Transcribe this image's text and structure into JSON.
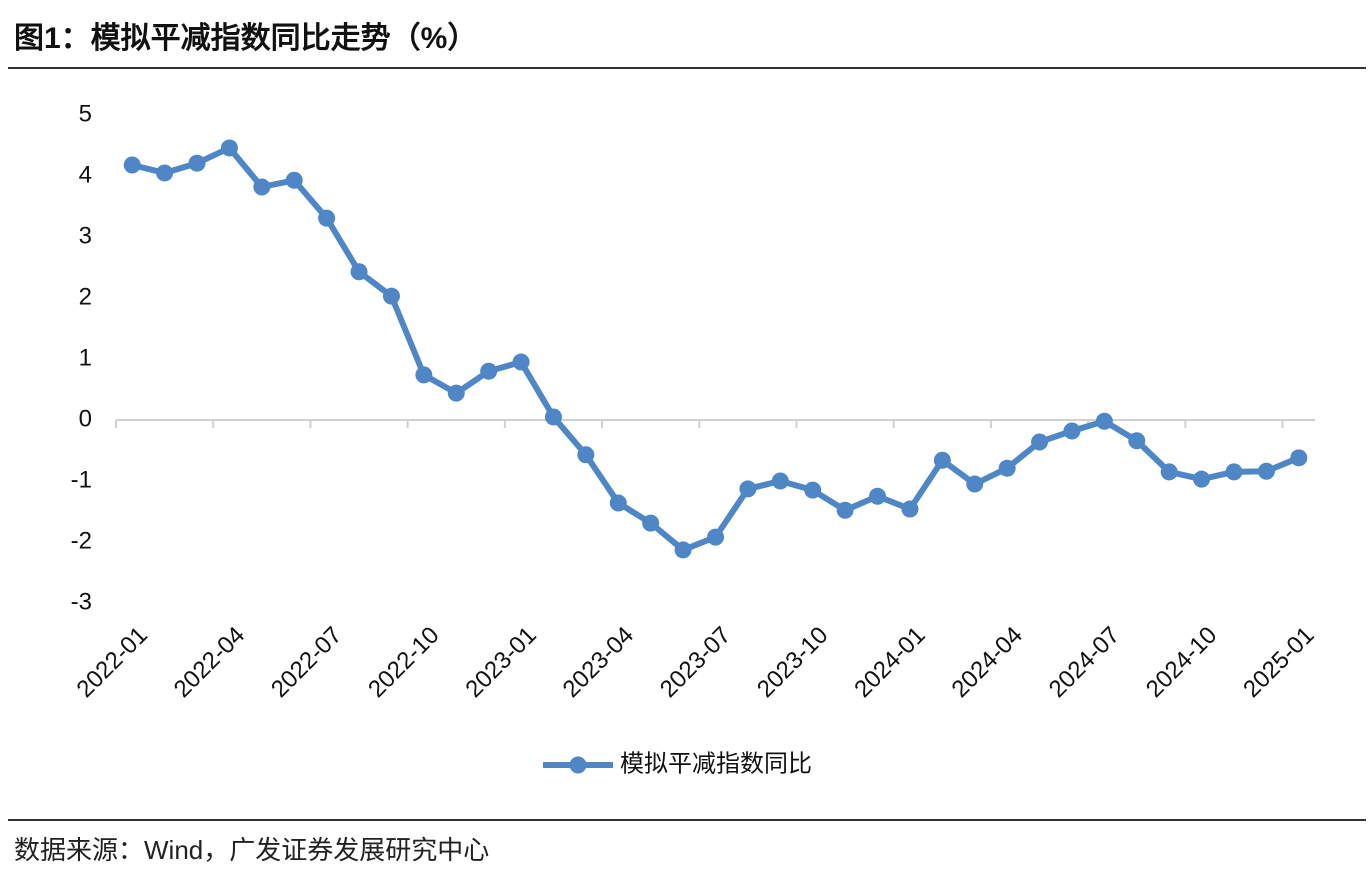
{
  "chart_data": {
    "type": "line",
    "title": "图1：模拟平减指数同比走势（%）",
    "categories": [
      "2022-01",
      null,
      null,
      "2022-04",
      null,
      null,
      "2022-07",
      null,
      null,
      "2022-10",
      null,
      null,
      "2023-01",
      null,
      null,
      "2023-04",
      null,
      null,
      "2023-07",
      null,
      null,
      "2023-10",
      null,
      null,
      "2024-01",
      null,
      null,
      "2024-04",
      null,
      null,
      "2024-07",
      null,
      null,
      "2024-10",
      null,
      null,
      "2025-01"
    ],
    "series": [
      {
        "name": "模拟平减指数同比",
        "color": "#4f86c6",
        "values": [
          4.18,
          4.05,
          4.21,
          4.46,
          3.82,
          3.93,
          3.31,
          2.43,
          2.03,
          0.74,
          0.44,
          0.8,
          0.95,
          0.05,
          -0.57,
          -1.36,
          -1.69,
          -2.13,
          -1.92,
          -1.13,
          -1.0,
          -1.15,
          -1.48,
          -1.25,
          -1.46,
          -0.66,
          -1.05,
          -0.79,
          -0.36,
          -0.18,
          -0.02,
          -0.34,
          -0.85,
          -0.97,
          -0.85,
          -0.84,
          -0.62
        ]
      }
    ],
    "ylim": [
      -3,
      5
    ],
    "yticks": [
      -3,
      -2,
      -1,
      0,
      1,
      2,
      3,
      4,
      5
    ],
    "grid": false,
    "legend": "bottom",
    "source": "数据来源：Wind，广发证券发展研究中心"
  }
}
